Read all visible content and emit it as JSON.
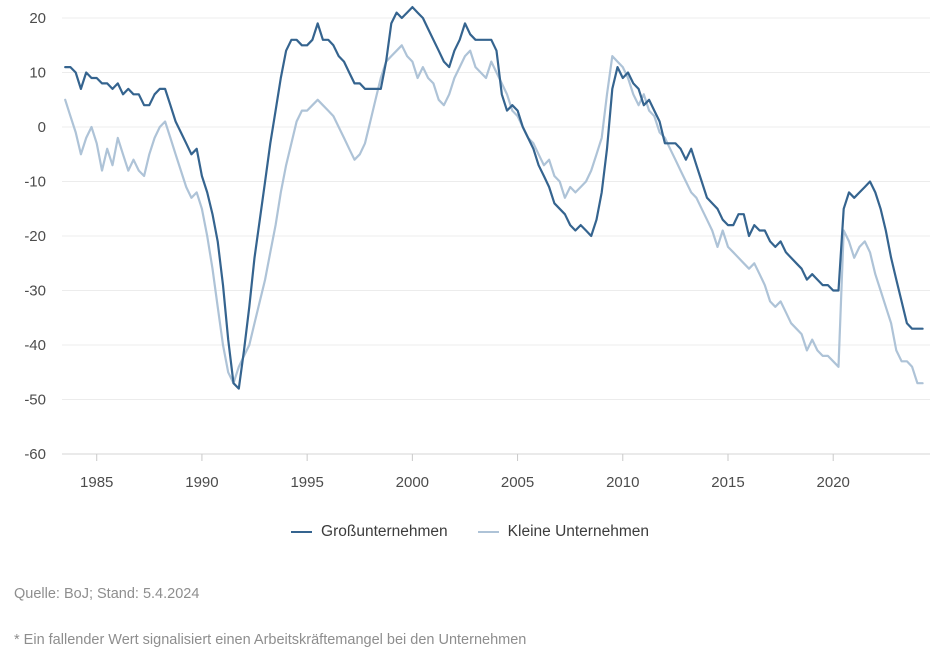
{
  "chart_data": {
    "type": "line",
    "title": "",
    "frequency": "quarterly",
    "x_start": 1983.5,
    "x_step": 0.25,
    "x_axis": {
      "min": 1983.35,
      "max": 2024.6,
      "ticks": [
        1985,
        1990,
        1995,
        2000,
        2005,
        2010,
        2015,
        2020
      ]
    },
    "y_axis": {
      "min": -60,
      "max": 20,
      "ticks": [
        20,
        10,
        0,
        -10,
        -20,
        -30,
        -40,
        -50,
        -60
      ]
    },
    "grid": true,
    "legend_position": "bottom",
    "series": [
      {
        "name": "Großunternehmen",
        "color": "#35648f",
        "values": [
          11,
          11,
          10,
          7,
          10,
          9,
          9,
          8,
          8,
          7,
          8,
          6,
          7,
          6,
          6,
          4,
          4,
          6,
          7,
          7,
          4,
          1,
          -1,
          -3,
          -5,
          -4,
          -9,
          -12,
          -16,
          -21,
          -29,
          -39,
          -47,
          -48,
          -41,
          -33,
          -24,
          -17,
          -10,
          -3,
          3,
          9,
          14,
          16,
          16,
          15,
          15,
          16,
          19,
          16,
          16,
          15,
          13,
          12,
          10,
          8,
          8,
          7,
          7,
          7,
          7,
          12,
          19,
          21,
          20,
          21,
          22,
          21,
          20,
          18,
          16,
          14,
          12,
          11,
          14,
          16,
          19,
          17,
          16,
          16,
          16,
          16,
          14,
          6,
          3,
          4,
          3,
          0,
          -2,
          -4,
          -7,
          -9,
          -11,
          -14,
          -15,
          -16,
          -18,
          -19,
          -18,
          -19,
          -20,
          -17,
          -12,
          -4,
          7,
          11,
          9,
          10,
          8,
          7,
          4,
          5,
          3,
          1,
          -3,
          -3,
          -3,
          -4,
          -6,
          -4,
          -7,
          -10,
          -13,
          -14,
          -15,
          -17,
          -18,
          -18,
          -16,
          -16,
          -20,
          -18,
          -19,
          -19,
          -21,
          -22,
          -21,
          -23,
          -24,
          -25,
          -26,
          -28,
          -27,
          -28,
          -29,
          -29,
          -30,
          -30,
          -15,
          -12,
          -13,
          -12,
          -11,
          -10,
          -12,
          -15,
          -19,
          -24,
          -28,
          -32,
          -36,
          -37,
          -37,
          -37
        ]
      },
      {
        "name": "Kleine Unternehmen",
        "color": "#aec3d7",
        "values": [
          5,
          2,
          -1,
          -5,
          -2,
          0,
          -3,
          -8,
          -4,
          -7,
          -2,
          -5,
          -8,
          -6,
          -8,
          -9,
          -5,
          -2,
          0,
          1,
          -2,
          -5,
          -8,
          -11,
          -13,
          -12,
          -15,
          -20,
          -26,
          -33,
          -40,
          -45,
          -47,
          -44,
          -42,
          -40,
          -36,
          -32,
          -28,
          -23,
          -18,
          -12,
          -7,
          -3,
          1,
          3,
          3,
          4,
          5,
          4,
          3,
          2,
          0,
          -2,
          -4,
          -6,
          -5,
          -3,
          1,
          5,
          9,
          12,
          13,
          14,
          15,
          13,
          12,
          9,
          11,
          9,
          8,
          5,
          4,
          6,
          9,
          11,
          13,
          14,
          11,
          10,
          9,
          12,
          10,
          8,
          6,
          3,
          2,
          0,
          -2,
          -3,
          -5,
          -7,
          -6,
          -9,
          -10,
          -13,
          -11,
          -12,
          -11,
          -10,
          -8,
          -5,
          -2,
          6,
          13,
          12,
          11,
          9,
          6,
          4,
          6,
          3,
          2,
          -1,
          -2,
          -4,
          -6,
          -8,
          -10,
          -12,
          -13,
          -15,
          -17,
          -19,
          -22,
          -19,
          -22,
          -23,
          -24,
          -25,
          -26,
          -25,
          -27,
          -29,
          -32,
          -33,
          -32,
          -34,
          -36,
          -37,
          -38,
          -41,
          -39,
          -41,
          -42,
          -42,
          -43,
          -44,
          -19,
          -21,
          -24,
          -22,
          -21,
          -23,
          -27,
          -30,
          -33,
          -36,
          -41,
          -43,
          -43,
          -44,
          -47,
          -47
        ]
      }
    ],
    "style": {
      "gridline_color": "#ececec",
      "axis_line_color": "#d6d6d6",
      "tick_color": "#c9c9c9",
      "tick_label_color": "#4c4c4c"
    }
  },
  "legend": {
    "items": [
      {
        "label": "Großunternehmen",
        "color": "#35648f"
      },
      {
        "label": "Kleine Unternehmen",
        "color": "#aec3d7"
      }
    ]
  },
  "footer": {
    "source": "Quelle: BoJ; Stand: 5.4.2024",
    "footnote": "* Ein fallender Wert signalisiert einen Arbeitskräftemangel bei den Unternehmen"
  }
}
